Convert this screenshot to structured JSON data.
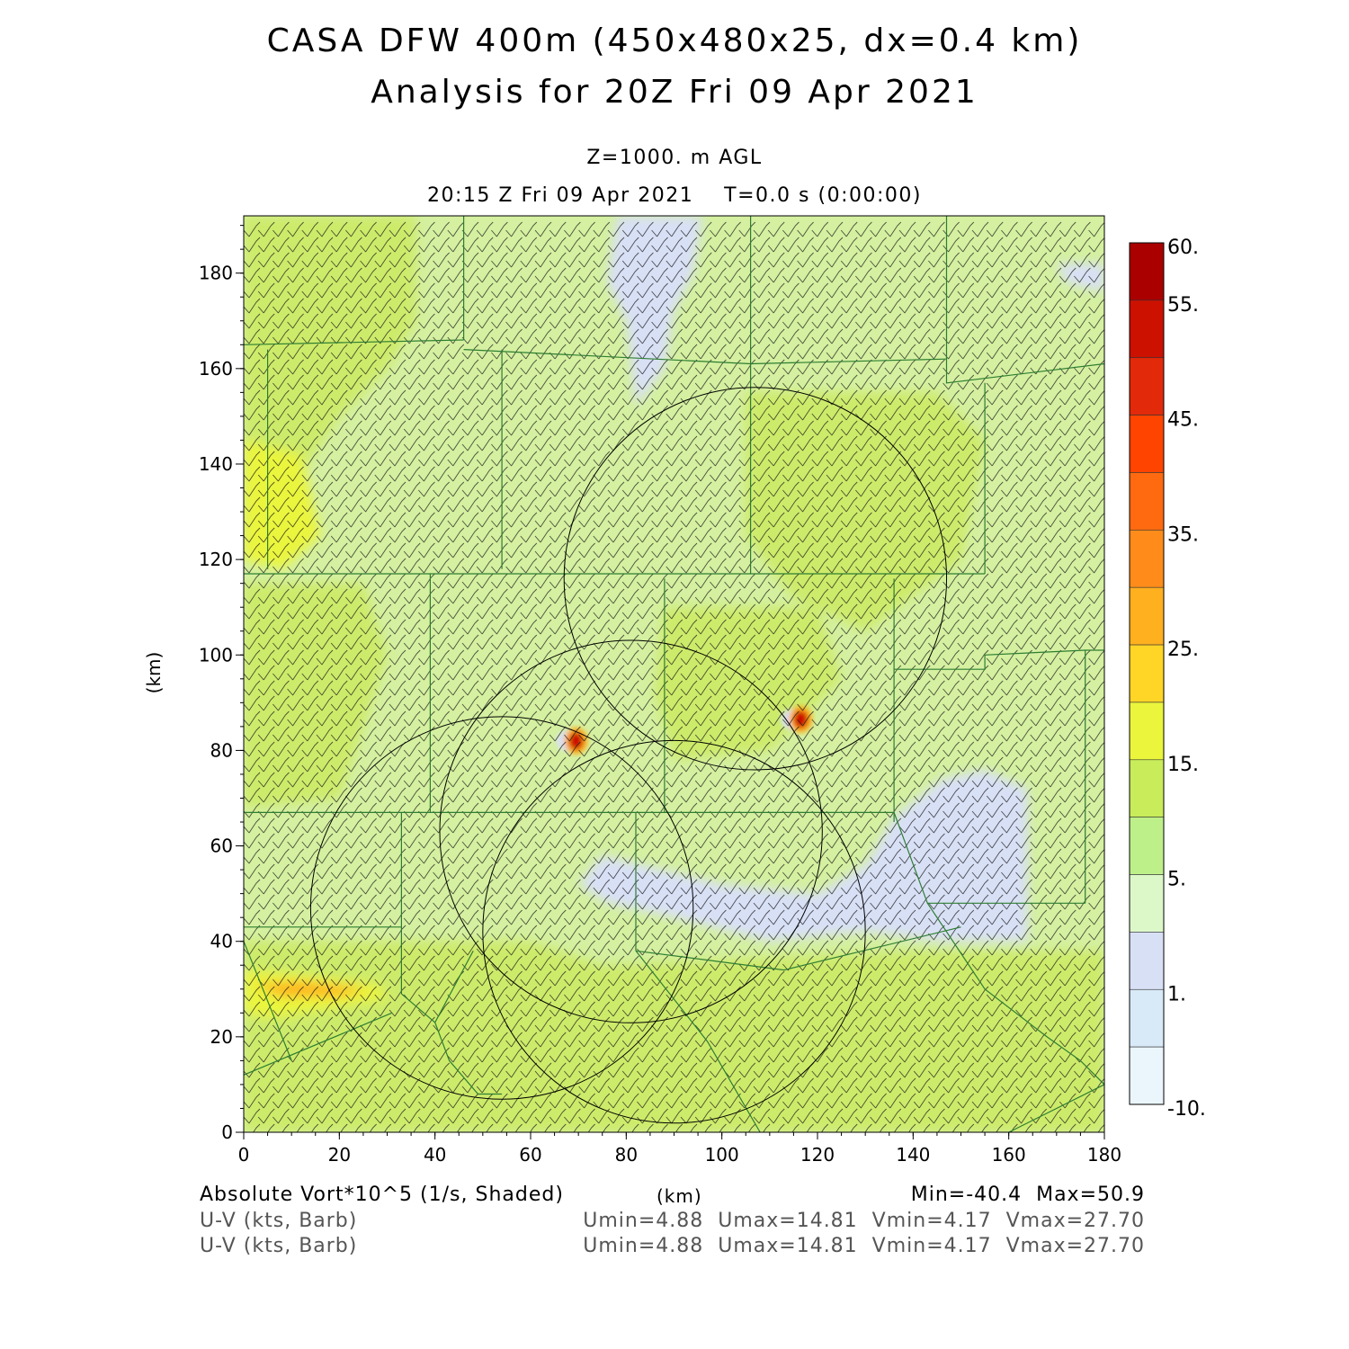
{
  "header": {
    "title_line1": "CASA DFW 400m (450x480x25, dx=0.4 km)",
    "title_line2": "Analysis for 20Z Fri 09 Apr 2021",
    "level": "Z=1000. m AGL",
    "valid_time": "20:15 Z Fri 09 Apr 2021    T=0.0 s (0:00:00)"
  },
  "axes": {
    "x_ticks": [
      "0",
      "20",
      "40",
      "60",
      "80",
      "100",
      "120",
      "140",
      "160",
      "180"
    ],
    "y_ticks": [
      "0",
      "20",
      "40",
      "60",
      "80",
      "100",
      "120",
      "140",
      "160",
      "180"
    ],
    "x_unit": "(km)",
    "y_unit": "(km)",
    "x_range": [
      0,
      180
    ],
    "y_range": [
      0,
      192
    ]
  },
  "colorbar": {
    "labels": [
      "60.",
      "55.",
      "45.",
      "35.",
      "25.",
      "15.",
      "5.",
      "1.",
      "-10."
    ],
    "colors": [
      "#aa0000",
      "#cc1100",
      "#e22a0a",
      "#ff4400",
      "#ff6a10",
      "#ff8c1a",
      "#ffb01f",
      "#ffd526",
      "#eaf53c",
      "#c8ec5a",
      "#bef08a",
      "#dcf8c8",
      "#d8e0f6",
      "#d8eaf8",
      "#eaf6fc"
    ]
  },
  "footer": {
    "field_label": "Absolute Vort*10^5 (1/s, Shaded)",
    "km_label": "(km)",
    "minmax": "Min=-40.4  Max=50.9",
    "barb_label_1": "U-V (kts, Barb)",
    "barb_label_2": "U-V (kts, Barb)",
    "uv_stats_1": "Umin=4.88  Umax=14.81  Vmin=4.17  Vmax=27.70",
    "uv_stats_2": "Umin=4.88  Umax=14.81  Vmin=4.17  Vmax=27.70"
  },
  "map": {
    "fill_colors": {
      "base": "#d4f0a0",
      "light_green": "#dcf8c8",
      "yellow_green": "#cdeb6a",
      "yellow": "#eaf53c",
      "orange": "#ffb01f",
      "blue_white": "#d8e0f6",
      "red": "#cc1100",
      "county_lines": "#2e7d32",
      "radar_rings": "#000000"
    },
    "radar_range_rings_km": [
      {
        "x": 54,
        "y": 47,
        "r": 40
      },
      {
        "x": 81,
        "y": 63,
        "r": 40
      },
      {
        "x": 90,
        "y": 42,
        "r": 40
      },
      {
        "x": 107,
        "y": 116,
        "r": 40
      }
    ],
    "vorticity_maxima_km": [
      {
        "x": 69.5,
        "y": 82,
        "value": 50.9
      },
      {
        "x": 116.5,
        "y": 86.5,
        "value": 40
      }
    ],
    "county_boundaries_km": [
      [
        [
          0,
          165
        ],
        [
          46,
          166
        ]
      ],
      [
        [
          46,
          166
        ],
        [
          46,
          192
        ]
      ],
      [
        [
          46,
          164
        ],
        [
          106,
          161
        ]
      ],
      [
        [
          106,
          161
        ],
        [
          106,
          192
        ]
      ],
      [
        [
          106,
          161
        ],
        [
          147,
          162
        ]
      ],
      [
        [
          147,
          162
        ],
        [
          147,
          192
        ]
      ],
      [
        [
          147,
          162
        ],
        [
          147,
          157
        ],
        [
          180,
          161
        ]
      ],
      [
        [
          5,
          164
        ],
        [
          5,
          118
        ]
      ],
      [
        [
          54,
          164
        ],
        [
          54,
          118
        ]
      ],
      [
        [
          0,
          117
        ],
        [
          155,
          117
        ]
      ],
      [
        [
          155,
          117
        ],
        [
          155,
          157
        ]
      ],
      [
        [
          106,
          161
        ],
        [
          106,
          117
        ]
      ],
      [
        [
          39,
          117
        ],
        [
          39,
          67
        ]
      ],
      [
        [
          88,
          116
        ],
        [
          88,
          67
        ]
      ],
      [
        [
          136,
          116
        ],
        [
          136,
          65
        ]
      ],
      [
        [
          136,
          97
        ],
        [
          155,
          97
        ],
        [
          155,
          100
        ],
        [
          176,
          101
        ],
        [
          180,
          101
        ]
      ],
      [
        [
          176,
          101
        ],
        [
          176,
          48
        ]
      ],
      [
        [
          0,
          67
        ],
        [
          136,
          67
        ]
      ],
      [
        [
          33,
          67
        ],
        [
          33,
          29
        ]
      ],
      [
        [
          0,
          43
        ],
        [
          33,
          43
        ]
      ],
      [
        [
          82,
          67
        ],
        [
          82,
          38
        ]
      ],
      [
        [
          136,
          67
        ],
        [
          143,
          48
        ],
        [
          176,
          48
        ]
      ],
      [
        [
          82,
          38
        ],
        [
          113,
          34
        ],
        [
          150,
          43
        ]
      ],
      [
        [
          33,
          29
        ],
        [
          40,
          23
        ],
        [
          48,
          38
        ]
      ],
      [
        [
          40,
          23
        ],
        [
          43,
          15
        ],
        [
          49,
          8
        ],
        [
          54,
          8
        ]
      ],
      [
        [
          82,
          38
        ],
        [
          97,
          19
        ],
        [
          108,
          0
        ]
      ],
      [
        [
          0,
          40
        ],
        [
          10,
          15
        ]
      ],
      [
        [
          0,
          12
        ],
        [
          31,
          25
        ]
      ],
      [
        [
          143,
          48
        ],
        [
          155,
          30
        ],
        [
          168,
          20
        ],
        [
          175,
          15
        ],
        [
          180,
          10
        ]
      ],
      [
        [
          160,
          0
        ],
        [
          180,
          10
        ]
      ]
    ],
    "shading_patches_km": [
      {
        "kind": "yellow_green",
        "points": [
          [
            0,
            192
          ],
          [
            36,
            192
          ],
          [
            36,
            170
          ],
          [
            30,
            160
          ],
          [
            20,
            150
          ],
          [
            10,
            135
          ],
          [
            0,
            130
          ]
        ]
      },
      {
        "kind": "yellow_green",
        "points": [
          [
            0,
            115
          ],
          [
            25,
            115
          ],
          [
            30,
            100
          ],
          [
            25,
            85
          ],
          [
            20,
            70
          ],
          [
            0,
            68
          ]
        ]
      },
      {
        "kind": "yellow_green",
        "points": [
          [
            105,
            155
          ],
          [
            145,
            155
          ],
          [
            155,
            145
          ],
          [
            150,
            120
          ],
          [
            130,
            105
          ],
          [
            115,
            112
          ],
          [
            105,
            125
          ]
        ]
      },
      {
        "kind": "yellow_green",
        "points": [
          [
            88,
            110
          ],
          [
            120,
            110
          ],
          [
            125,
            95
          ],
          [
            110,
            80
          ],
          [
            90,
            78
          ],
          [
            86,
            92
          ]
        ]
      },
      {
        "kind": "yellow_green",
        "points": [
          [
            0,
            40
          ],
          [
            60,
            40
          ],
          [
            75,
            35
          ],
          [
            140,
            38
          ],
          [
            180,
            38
          ],
          [
            180,
            0
          ],
          [
            0,
            0
          ]
        ]
      },
      {
        "kind": "yellow",
        "points": [
          [
            0,
            145
          ],
          [
            12,
            142
          ],
          [
            16,
            125
          ],
          [
            8,
            118
          ],
          [
            0,
            120
          ]
        ]
      },
      {
        "kind": "yellow",
        "points": [
          [
            0,
            34
          ],
          [
            12,
            33
          ],
          [
            28,
            31
          ],
          [
            30,
            28
          ],
          [
            18,
            26
          ],
          [
            6,
            24
          ],
          [
            0,
            25
          ]
        ]
      },
      {
        "kind": "orange",
        "points": [
          [
            2,
            31
          ],
          [
            12,
            31.5
          ],
          [
            26,
            30
          ],
          [
            20,
            28.5
          ],
          [
            8,
            28.5
          ]
        ]
      },
      {
        "kind": "blue_white",
        "points": [
          [
            78,
            192
          ],
          [
            96,
            192
          ],
          [
            94,
            180
          ],
          [
            90,
            172
          ],
          [
            88,
            160
          ],
          [
            82,
            152
          ],
          [
            80,
            170
          ],
          [
            76,
            178
          ]
        ]
      },
      {
        "kind": "blue_white",
        "points": [
          [
            75,
            58
          ],
          [
            100,
            52
          ],
          [
            120,
            50
          ],
          [
            130,
            56
          ],
          [
            136,
            66
          ],
          [
            146,
            74
          ],
          [
            155,
            76
          ],
          [
            164,
            72
          ],
          [
            164,
            40
          ],
          [
            146,
            40
          ],
          [
            130,
            42
          ],
          [
            110,
            40
          ],
          [
            90,
            45
          ],
          [
            76,
            48
          ],
          [
            70,
            52
          ]
        ]
      },
      {
        "kind": "blue_white",
        "points": [
          [
            170,
            182
          ],
          [
            180,
            182
          ],
          [
            180,
            176
          ],
          [
            172,
            178
          ]
        ]
      }
    ]
  }
}
